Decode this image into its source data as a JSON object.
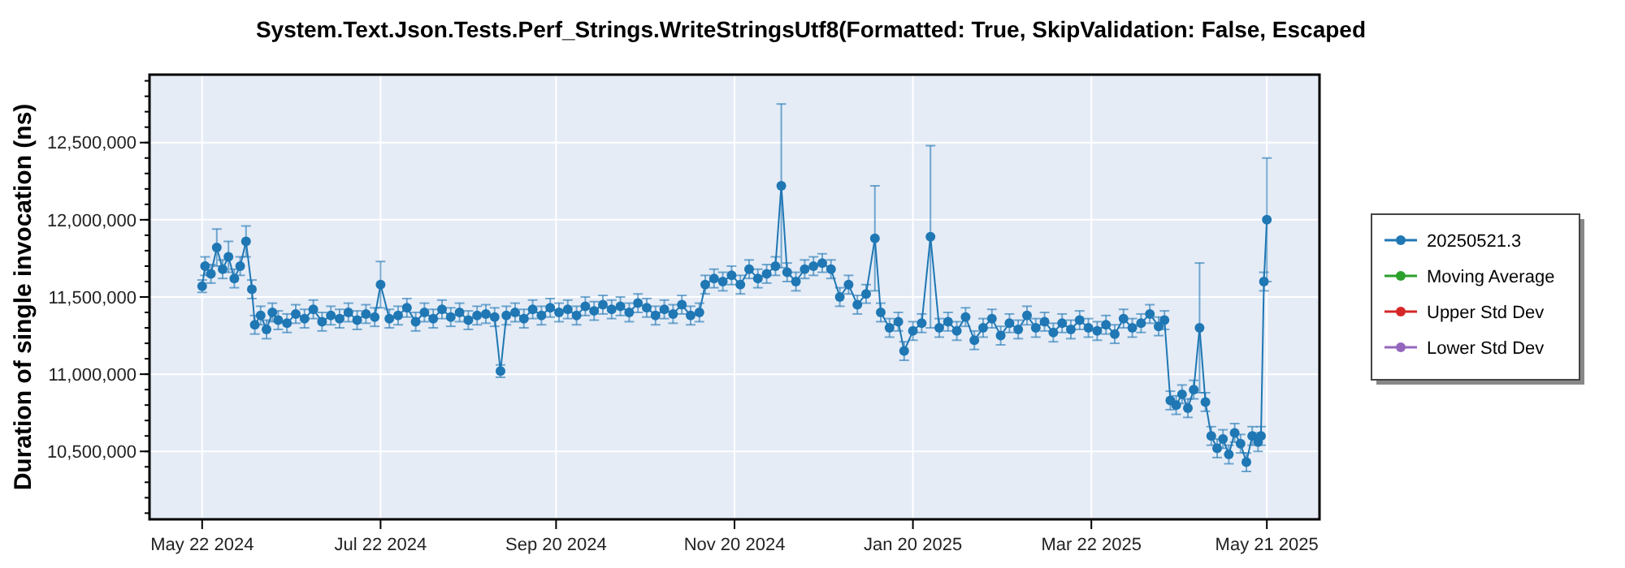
{
  "chart_data": {
    "type": "line",
    "title": "System.Text.Json.Tests.Perf_Strings.WriteStringsUtf8(Formatted: True, SkipValidation: False, Escaped",
    "ylabel": "Duration of single invocation (ns)",
    "xlim": [
      "2024-05-04",
      "2025-06-08"
    ],
    "xticks": [
      {
        "value": "2024-05-22",
        "label": "May 22 2024"
      },
      {
        "value": "2024-07-22",
        "label": "Jul 22 2024"
      },
      {
        "value": "2024-09-20",
        "label": "Sep 20 2024"
      },
      {
        "value": "2024-11-20",
        "label": "Nov 20 2024"
      },
      {
        "value": "2025-01-20",
        "label": "Jan 20 2025"
      },
      {
        "value": "2025-03-22",
        "label": "Mar 22 2025"
      },
      {
        "value": "2025-05-21",
        "label": "May 21 2025"
      }
    ],
    "ylim": [
      10060000,
      12940000
    ],
    "yticks": [
      {
        "value": 10500000,
        "label": "10,500,000"
      },
      {
        "value": 11000000,
        "label": "11,000,000"
      },
      {
        "value": 11500000,
        "label": "11,500,000"
      },
      {
        "value": 12000000,
        "label": "12,000,000"
      },
      {
        "value": 12500000,
        "label": "12,500,000"
      }
    ],
    "grid": true,
    "legend": "right",
    "marker": "circle",
    "line_style": "solid",
    "series": [
      {
        "name": "20250521.3",
        "color": "#1f77b4",
        "x": [
          "2024-05-22",
          "2024-05-23",
          "2024-05-25",
          "2024-05-27",
          "2024-05-29",
          "2024-05-31",
          "2024-06-02",
          "2024-06-04",
          "2024-06-06",
          "2024-06-08",
          "2024-06-09",
          "2024-06-11",
          "2024-06-13",
          "2024-06-15",
          "2024-06-17",
          "2024-06-20",
          "2024-06-23",
          "2024-06-26",
          "2024-06-29",
          "2024-07-02",
          "2024-07-05",
          "2024-07-08",
          "2024-07-11",
          "2024-07-14",
          "2024-07-17",
          "2024-07-20",
          "2024-07-22",
          "2024-07-25",
          "2024-07-28",
          "2024-07-31",
          "2024-08-03",
          "2024-08-06",
          "2024-08-09",
          "2024-08-12",
          "2024-08-15",
          "2024-08-18",
          "2024-08-21",
          "2024-08-24",
          "2024-08-27",
          "2024-08-30",
          "2024-09-01",
          "2024-09-03",
          "2024-09-06",
          "2024-09-09",
          "2024-09-12",
          "2024-09-15",
          "2024-09-18",
          "2024-09-21",
          "2024-09-24",
          "2024-09-27",
          "2024-09-30",
          "2024-10-03",
          "2024-10-06",
          "2024-10-09",
          "2024-10-12",
          "2024-10-15",
          "2024-10-18",
          "2024-10-21",
          "2024-10-24",
          "2024-10-27",
          "2024-10-30",
          "2024-11-02",
          "2024-11-05",
          "2024-11-08",
          "2024-11-10",
          "2024-11-13",
          "2024-11-16",
          "2024-11-19",
          "2024-11-22",
          "2024-11-25",
          "2024-11-28",
          "2024-12-01",
          "2024-12-04",
          "2024-12-06",
          "2024-12-08",
          "2024-12-11",
          "2024-12-14",
          "2024-12-17",
          "2024-12-20",
          "2024-12-23",
          "2024-12-26",
          "2024-12-29",
          "2025-01-01",
          "2025-01-04",
          "2025-01-07",
          "2025-01-09",
          "2025-01-12",
          "2025-01-15",
          "2025-01-17",
          "2025-01-20",
          "2025-01-23",
          "2025-01-26",
          "2025-01-29",
          "2025-02-01",
          "2025-02-04",
          "2025-02-07",
          "2025-02-10",
          "2025-02-13",
          "2025-02-16",
          "2025-02-19",
          "2025-02-22",
          "2025-02-25",
          "2025-02-28",
          "2025-03-03",
          "2025-03-06",
          "2025-03-09",
          "2025-03-12",
          "2025-03-15",
          "2025-03-18",
          "2025-03-21",
          "2025-03-24",
          "2025-03-27",
          "2025-03-30",
          "2025-04-02",
          "2025-04-05",
          "2025-04-08",
          "2025-04-11",
          "2025-04-14",
          "2025-04-16",
          "2025-04-18",
          "2025-04-20",
          "2025-04-22",
          "2025-04-24",
          "2025-04-26",
          "2025-04-28",
          "2025-04-30",
          "2025-05-02",
          "2025-05-04",
          "2025-05-06",
          "2025-05-08",
          "2025-05-10",
          "2025-05-12",
          "2025-05-14",
          "2025-05-16",
          "2025-05-18",
          "2025-05-19",
          "2025-05-20",
          "2025-05-21"
        ],
        "values": [
          11570000,
          11700000,
          11650000,
          11820000,
          11680000,
          11760000,
          11620000,
          11700000,
          11860000,
          11550000,
          11320000,
          11380000,
          11290000,
          11400000,
          11350000,
          11330000,
          11390000,
          11360000,
          11420000,
          11340000,
          11380000,
          11360000,
          11400000,
          11350000,
          11390000,
          11370000,
          11580000,
          11360000,
          11380000,
          11430000,
          11340000,
          11400000,
          11360000,
          11420000,
          11370000,
          11400000,
          11350000,
          11380000,
          11390000,
          11370000,
          11020000,
          11380000,
          11400000,
          11360000,
          11420000,
          11380000,
          11430000,
          11400000,
          11420000,
          11380000,
          11440000,
          11410000,
          11450000,
          11420000,
          11440000,
          11400000,
          11460000,
          11430000,
          11380000,
          11420000,
          11390000,
          11450000,
          11380000,
          11400000,
          11580000,
          11620000,
          11600000,
          11640000,
          11580000,
          11680000,
          11620000,
          11650000,
          11700000,
          12220000,
          11660000,
          11600000,
          11680000,
          11700000,
          11720000,
          11680000,
          11500000,
          11580000,
          11450000,
          11520000,
          11880000,
          11400000,
          11300000,
          11340000,
          11150000,
          11280000,
          11330000,
          11890000,
          11300000,
          11340000,
          11280000,
          11370000,
          11220000,
          11300000,
          11360000,
          11250000,
          11330000,
          11290000,
          11380000,
          11300000,
          11340000,
          11270000,
          11330000,
          11290000,
          11350000,
          11300000,
          11280000,
          11320000,
          11260000,
          11360000,
          11300000,
          11330000,
          11390000,
          11310000,
          11350000,
          10830000,
          10800000,
          10870000,
          10780000,
          10900000,
          11300000,
          10820000,
          10600000,
          10520000,
          10580000,
          10480000,
          10620000,
          10550000,
          10430000,
          10600000,
          10560000,
          10600000,
          11600000,
          12000000
        ],
        "errors": [
          40000,
          60000,
          60000,
          120000,
          60000,
          100000,
          60000,
          60000,
          100000,
          60000,
          60000,
          60000,
          60000,
          60000,
          60000,
          60000,
          60000,
          60000,
          60000,
          60000,
          60000,
          60000,
          60000,
          60000,
          60000,
          60000,
          150000,
          60000,
          60000,
          60000,
          60000,
          60000,
          60000,
          60000,
          60000,
          60000,
          60000,
          60000,
          60000,
          60000,
          40000,
          60000,
          60000,
          60000,
          60000,
          60000,
          60000,
          60000,
          60000,
          60000,
          60000,
          60000,
          60000,
          60000,
          60000,
          60000,
          60000,
          60000,
          60000,
          60000,
          60000,
          60000,
          60000,
          60000,
          60000,
          60000,
          60000,
          60000,
          60000,
          60000,
          60000,
          60000,
          60000,
          530000,
          60000,
          60000,
          60000,
          60000,
          60000,
          60000,
          60000,
          60000,
          60000,
          60000,
          340000,
          60000,
          60000,
          60000,
          60000,
          60000,
          60000,
          590000,
          60000,
          60000,
          60000,
          60000,
          60000,
          60000,
          60000,
          60000,
          60000,
          60000,
          60000,
          60000,
          60000,
          60000,
          60000,
          60000,
          60000,
          60000,
          60000,
          60000,
          60000,
          60000,
          60000,
          60000,
          60000,
          60000,
          60000,
          60000,
          60000,
          60000,
          60000,
          60000,
          420000,
          60000,
          60000,
          60000,
          60000,
          60000,
          60000,
          60000,
          60000,
          60000,
          60000,
          60000,
          60000,
          400000
        ]
      },
      {
        "name": "Moving Average",
        "color": "#2ca02c"
      },
      {
        "name": "Upper Std Dev",
        "color": "#d62728"
      },
      {
        "name": "Lower Std Dev",
        "color": "#9467bd"
      }
    ]
  }
}
